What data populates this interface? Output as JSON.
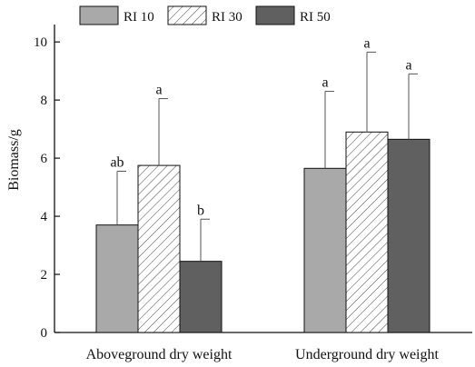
{
  "chart_data": {
    "type": "bar",
    "categories": [
      "Aboveground dry weight",
      "Underground dry weight"
    ],
    "series": [
      {
        "name": "RI 10",
        "values": [
          3.7,
          5.65
        ],
        "errors": [
          1.85,
          2.65
        ],
        "letters": [
          "ab",
          "a"
        ],
        "fill": "#a9a9a9",
        "pattern": "solid"
      },
      {
        "name": "RI 30",
        "values": [
          5.75,
          6.9
        ],
        "errors": [
          2.3,
          2.75
        ],
        "letters": [
          "a",
          "a"
        ],
        "fill": "#ffffff",
        "pattern": "hatch"
      },
      {
        "name": "RI 50",
        "values": [
          2.45,
          6.65
        ],
        "errors": [
          1.45,
          2.25
        ],
        "letters": [
          "b",
          "a"
        ],
        "fill": "#606060",
        "pattern": "solid"
      }
    ],
    "xlabel": "",
    "ylabel": "Biomass/g",
    "ylim": [
      0,
      10.6
    ],
    "yticks": [
      0,
      2,
      4,
      6,
      8,
      10
    ],
    "grid": false,
    "legend": "top"
  }
}
